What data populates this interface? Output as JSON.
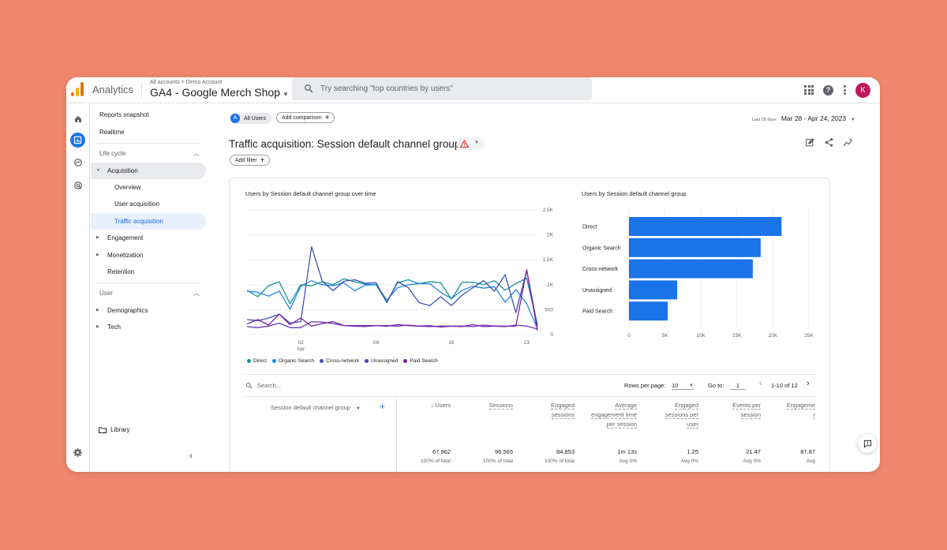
{
  "app": {
    "name": "Analytics",
    "breadcrumb": "All accounts > Demo Account",
    "property": "GA4 - Google Merch Shop",
    "avatar": "K",
    "colors": {
      "background": "#EE876B",
      "accent": "#1a73e8",
      "avatar": "#c2185b"
    }
  },
  "search": {
    "placeholder": "Try searching \"top countries by users\""
  },
  "top_icons": [
    "apps-grid-icon",
    "help-icon",
    "more-vert-icon",
    "account-avatar"
  ],
  "rail": [
    "home-icon",
    "reports-icon",
    "explore-icon",
    "advertising-icon",
    "settings-icon"
  ],
  "nav": {
    "reports_snapshot": "Reports snapshot",
    "realtime": "Realtime",
    "life_cycle": "Life cycle",
    "acquisition": "Acquisition",
    "overview": "Overview",
    "user_acquisition": "User acquisition",
    "traffic_acquisition": "Traffic acquisition",
    "engagement": "Engagement",
    "monetization": "Monetization",
    "retention": "Retention",
    "user": "User",
    "demographics": "Demographics",
    "tech": "Tech",
    "library": "Library"
  },
  "toolbar": {
    "segment_badge": "A",
    "segment": "All Users",
    "add_comparison": "Add comparison",
    "date_label": "Last 28 days",
    "date_range": "Mar 28 - Apr 24, 2023",
    "title": "Traffic acquisition: Session default channel group",
    "add_filter": "Add filter"
  },
  "chart_data": [
    {
      "type": "line",
      "title": "Users by Session default channel group over time",
      "x_ticks": [
        "02\nApr",
        "09",
        "16",
        "23"
      ],
      "y_ticks": [
        "2.5K",
        "2K",
        "1.5K",
        "1K",
        "500",
        "0"
      ],
      "ylim": [
        0,
        2500
      ],
      "x": [
        "Mar 28",
        "Mar 29",
        "Mar 30",
        "Mar 31",
        "Apr 1",
        "Apr 2",
        "Apr 3",
        "Apr 4",
        "Apr 5",
        "Apr 6",
        "Apr 7",
        "Apr 8",
        "Apr 9",
        "Apr 10",
        "Apr 11",
        "Apr 12",
        "Apr 13",
        "Apr 14",
        "Apr 15",
        "Apr 16",
        "Apr 17",
        "Apr 18",
        "Apr 19",
        "Apr 20",
        "Apr 21",
        "Apr 22",
        "Apr 23",
        "Apr 24"
      ],
      "series": [
        {
          "name": "Direct",
          "color": "#12939a",
          "values": [
            890,
            760,
            980,
            1060,
            620,
            1000,
            980,
            1060,
            1000,
            1120,
            1060,
            1010,
            1000,
            650,
            1040,
            1100,
            1020,
            1060,
            1040,
            710,
            1050,
            1050,
            1000,
            1080,
            890,
            1020,
            1130,
            200
          ]
        },
        {
          "name": "Organic Search",
          "color": "#1e88e5",
          "values": [
            870,
            850,
            770,
            870,
            510,
            970,
            1080,
            1000,
            980,
            1040,
            880,
            990,
            1000,
            690,
            940,
            1000,
            1020,
            1020,
            850,
            720,
            890,
            970,
            930,
            960,
            650,
            900,
            620,
            120
          ]
        },
        {
          "name": "Cross-network",
          "color": "#3f51b5",
          "values": [
            300,
            280,
            330,
            410,
            230,
            260,
            1760,
            1070,
            880,
            1070,
            1100,
            1030,
            1040,
            640,
            1060,
            940,
            640,
            580,
            760,
            580,
            790,
            940,
            1080,
            870,
            1200,
            440,
            1290,
            170
          ]
        },
        {
          "name": "Unassigned",
          "color": "#673ab7",
          "values": [
            160,
            140,
            170,
            230,
            140,
            140,
            260,
            250,
            220,
            180,
            170,
            160,
            180,
            180,
            170,
            190,
            170,
            180,
            150,
            170,
            170,
            160,
            190,
            170,
            160,
            190,
            170,
            110
          ]
        },
        {
          "name": "Paid Search",
          "color": "#7b1fa2",
          "values": [
            210,
            300,
            190,
            410,
            200,
            330,
            170,
            220,
            260,
            180,
            180,
            180,
            180,
            170,
            200,
            180,
            170,
            160,
            170,
            170,
            160,
            200,
            160,
            170,
            170,
            170,
            1300,
            80
          ]
        }
      ],
      "legend": [
        "Direct",
        "Organic Search",
        "Cross-network",
        "Unassigned",
        "Paid Search"
      ],
      "legend_position": "bottom-left"
    },
    {
      "type": "bar",
      "orientation": "horizontal",
      "title": "Users by Session default channel group",
      "categories": [
        "Direct",
        "Organic Search",
        "Cross-network",
        "Unassigned",
        "Paid Search"
      ],
      "values": [
        21200,
        18300,
        17200,
        6700,
        5400
      ],
      "x_ticks": [
        "0",
        "5K",
        "10K",
        "15K",
        "20K",
        "25K"
      ],
      "xlim": [
        0,
        25000
      ],
      "color": "#1a73e8"
    }
  ],
  "table": {
    "search_placeholder": "Search...",
    "rows_per_page_label": "Rows per page:",
    "rows_per_page": "10",
    "goto_label": "Go to:",
    "goto_value": "1",
    "page_info": "1-10 of 12",
    "dimension_header": "Session default channel group",
    "columns": [
      {
        "label": "↓ Users",
        "total": "67,962",
        "sub": "100% of total"
      },
      {
        "label": "Sessions",
        "total": "96,565",
        "sub": "100% of total"
      },
      {
        "label": "Engaged sessions",
        "total": "84,853",
        "sub": "100% of total"
      },
      {
        "label": "Average engagement time per session",
        "total": "1m 13s",
        "sub": "Avg 0%"
      },
      {
        "label": "Engaged sessions per user",
        "total": "1.25",
        "sub": "Avg 0%"
      },
      {
        "label": "Events per session",
        "total": "21.47",
        "sub": "Avg 0%"
      },
      {
        "label": "Engageme r",
        "total": "87.87",
        "sub": "Avg"
      }
    ]
  }
}
